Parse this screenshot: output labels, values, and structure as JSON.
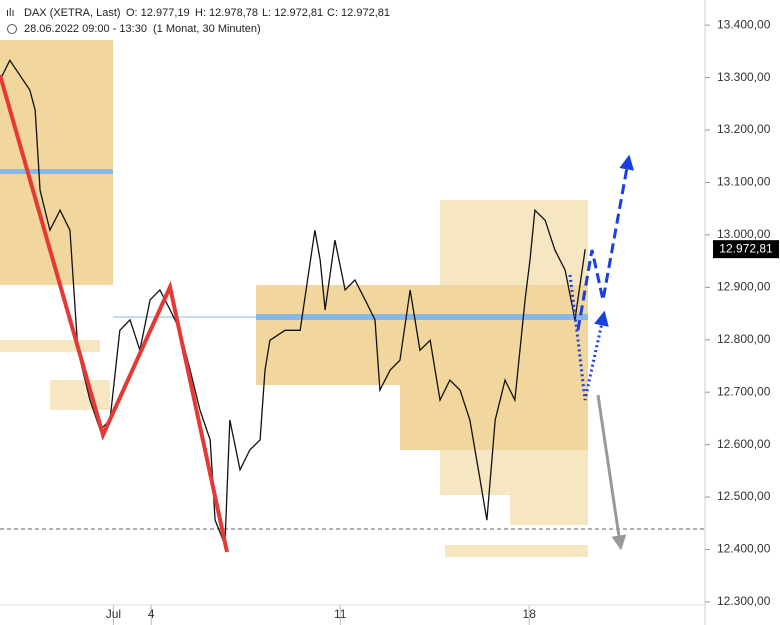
{
  "chart_data": {
    "type": "line",
    "title": "DAX (XETRA, Last)",
    "annotations": [
      "O: 12.977,19",
      "H: 12.978,78",
      "L: 12.972,81",
      "C: 12.972,81",
      "28.06.2022 09:00 - 13:30",
      "(1 Monat, 30 Minuten)"
    ],
    "x": [
      0,
      0.26,
      0.79,
      0.93,
      1.06,
      1.32,
      1.59,
      1.85,
      2.06,
      2.38,
      2.65,
      2.91,
      3.17,
      3.44,
      3.7,
      3.97,
      4.23,
      4.5,
      4.76,
      5.03,
      5.29,
      5.56,
      5.69,
      5.95,
      6.08,
      6.35,
      6.61,
      6.88,
      7.01,
      7.14,
      7.54,
      7.94,
      8.33,
      8.47,
      8.6,
      8.86,
      9.13,
      9.39,
      9.66,
      9.92,
      10.05,
      10.32,
      10.58,
      10.85,
      11.11,
      11.38,
      11.64,
      11.9,
      12.17,
      12.43,
      12.7,
      12.88,
      13.1,
      13.36,
      13.62,
      13.89,
      14.02,
      14.15,
      14.42,
      14.68,
      14.95,
      15.21,
      15.48
    ],
    "values": [
      13295,
      13333,
      13276,
      13238,
      13085,
      13009,
      13047,
      13009,
      12780,
      12685,
      12628,
      12647,
      12818,
      12838,
      12780,
      12876,
      12895,
      12857,
      12818,
      12742,
      12666,
      12609,
      12456,
      12409,
      12647,
      12552,
      12590,
      12609,
      12742,
      12799,
      12818,
      12818,
      13009,
      12952,
      12857,
      12990,
      12895,
      12914,
      12876,
      12838,
      12704,
      12742,
      12761,
      12895,
      12780,
      12799,
      12685,
      12723,
      12704,
      12647,
      12533,
      12456,
      12647,
      12723,
      12685,
      12876,
      12952,
      13047,
      13028,
      12971,
      12933,
      12838,
      12972.81
    ],
    "color": "#111111",
    "xlim": [
      0,
      18.65
    ],
    "xticks": [
      {
        "value": 3,
        "label": "Jul"
      },
      {
        "value": 4,
        "label": "4"
      },
      {
        "value": 9,
        "label": "11"
      },
      {
        "value": 14,
        "label": "18"
      }
    ],
    "ylim": [
      12256,
      13448
    ],
    "yticks": [
      {
        "value": 12300,
        "label": "12.300,00"
      },
      {
        "value": 12400,
        "label": "12.400,00"
      },
      {
        "value": 12500,
        "label": "12.500,00"
      },
      {
        "value": 12600,
        "label": "12.600,00"
      },
      {
        "value": 12700,
        "label": "12.700,00"
      },
      {
        "value": 12800,
        "label": "12.800,00"
      },
      {
        "value": 12900,
        "label": "12.900,00"
      },
      {
        "value": 13000,
        "label": "13.000,00"
      },
      {
        "value": 13100,
        "label": "13.100,00"
      },
      {
        "value": 13200,
        "label": "13.200,00"
      },
      {
        "value": 13300,
        "label": "13.300,00"
      },
      {
        "value": 13400,
        "label": "13.400,00"
      }
    ],
    "last_price": {
      "value": 12972.81,
      "label": "12.972,81"
    }
  }
}
